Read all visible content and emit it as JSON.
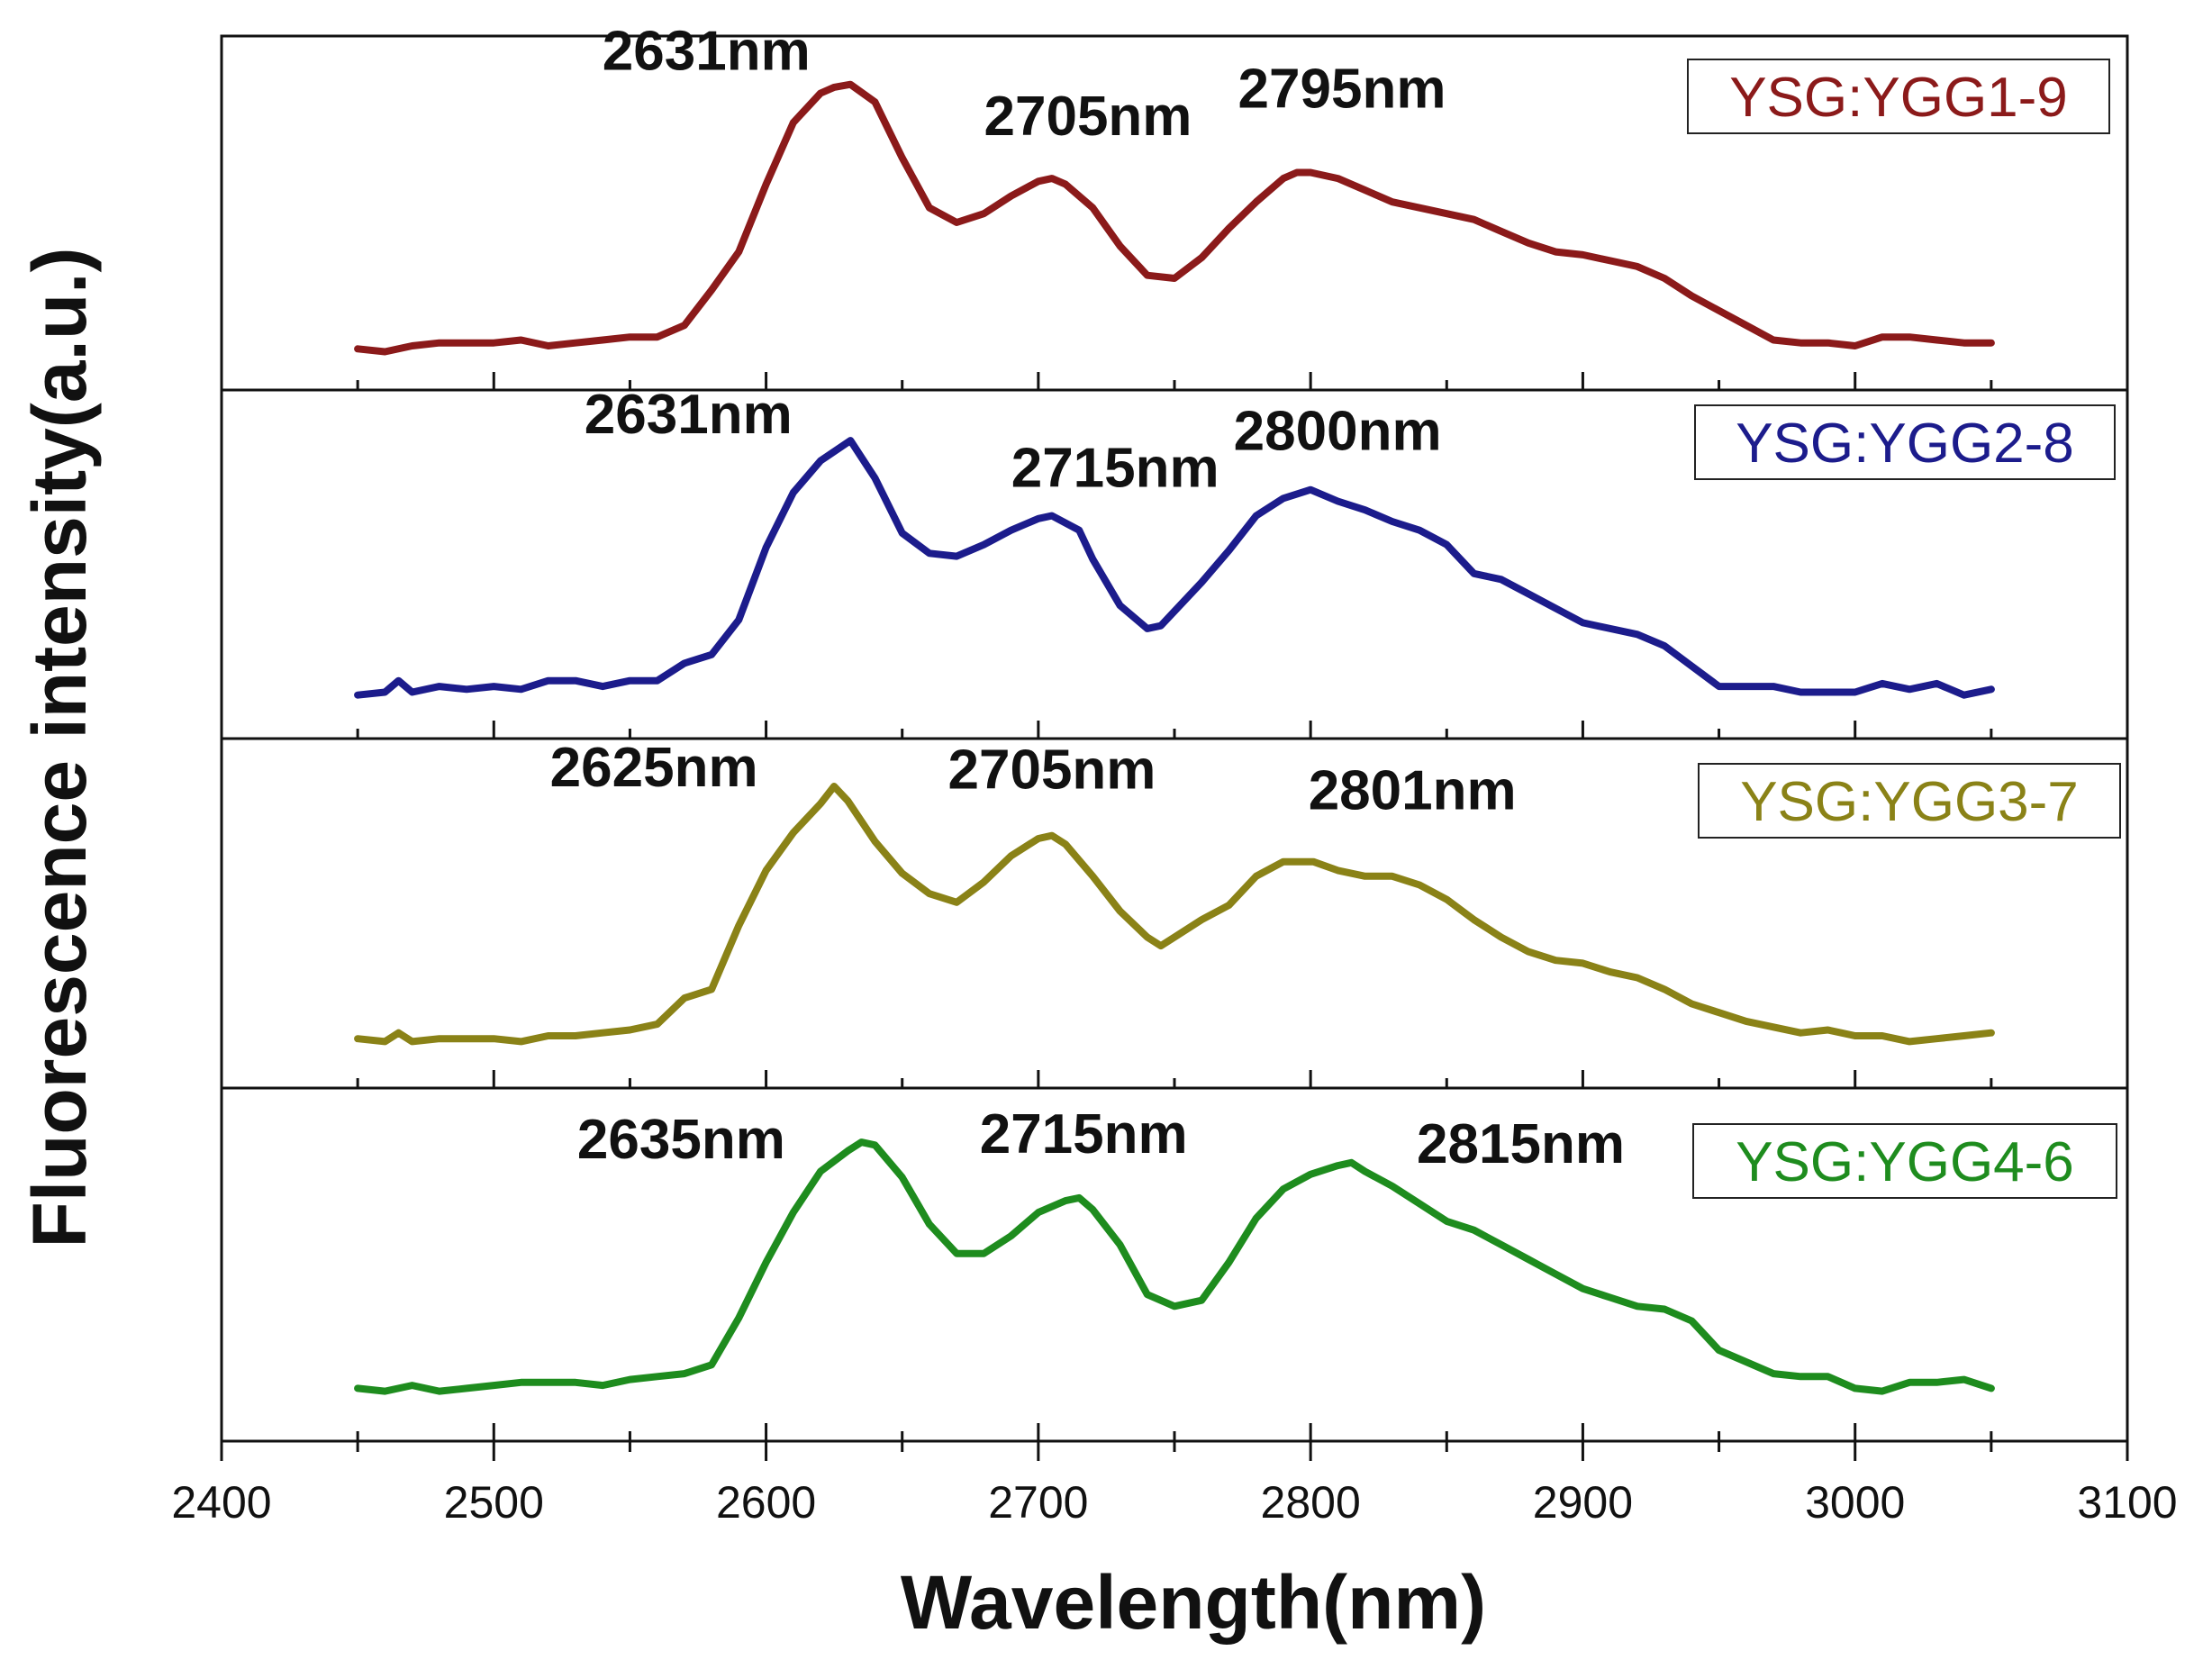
{
  "chart_data": {
    "type": "line",
    "title": "",
    "xlabel": "Wavelength(nm)",
    "ylabel": "Fluorescence intensity(a.u.)",
    "xlim": [
      2400,
      3100
    ],
    "xticks": [
      2400,
      2500,
      2600,
      2700,
      2800,
      2900,
      3000,
      3100
    ],
    "x_minor_ticks": [
      2450,
      2550,
      2650,
      2750,
      2850,
      2950,
      3050
    ],
    "ylim": [
      0,
      1
    ],
    "layout": "stacked-panels",
    "series": [
      {
        "name": "YSG:YGG1-9",
        "color": "#8b1a1a",
        "x": [
          2450,
          2460,
          2470,
          2480,
          2490,
          2500,
          2510,
          2520,
          2530,
          2540,
          2550,
          2560,
          2570,
          2580,
          2590,
          2600,
          2610,
          2620,
          2625,
          2631,
          2640,
          2650,
          2660,
          2670,
          2680,
          2690,
          2700,
          2705,
          2710,
          2720,
          2730,
          2740,
          2750,
          2760,
          2770,
          2780,
          2790,
          2795,
          2800,
          2810,
          2820,
          2830,
          2840,
          2850,
          2860,
          2870,
          2880,
          2890,
          2900,
          2910,
          2920,
          2930,
          2940,
          2950,
          2960,
          2970,
          2980,
          2990,
          3000,
          3010,
          3020,
          3030,
          3040,
          3050
        ],
        "y": [
          0.08,
          0.07,
          0.09,
          0.1,
          0.1,
          0.1,
          0.11,
          0.09,
          0.1,
          0.11,
          0.12,
          0.12,
          0.16,
          0.28,
          0.41,
          0.64,
          0.85,
          0.95,
          0.97,
          0.98,
          0.92,
          0.73,
          0.56,
          0.51,
          0.54,
          0.6,
          0.65,
          0.66,
          0.64,
          0.56,
          0.43,
          0.33,
          0.32,
          0.39,
          0.49,
          0.58,
          0.66,
          0.68,
          0.68,
          0.66,
          0.62,
          0.58,
          0.56,
          0.54,
          0.52,
          0.48,
          0.44,
          0.41,
          0.4,
          0.38,
          0.36,
          0.32,
          0.26,
          0.21,
          0.16,
          0.11,
          0.1,
          0.1,
          0.09,
          0.12,
          0.12,
          0.11,
          0.1,
          0.1
        ],
        "peaks": [
          {
            "label": "2631nm"
          },
          {
            "label": "2705nm"
          },
          {
            "label": "2795nm"
          }
        ]
      },
      {
        "name": "YSG:YGG2-8",
        "color": "#1c1c8c",
        "x": [
          2450,
          2460,
          2465,
          2470,
          2480,
          2490,
          2500,
          2510,
          2520,
          2530,
          2540,
          2550,
          2560,
          2570,
          2580,
          2590,
          2600,
          2610,
          2620,
          2631,
          2640,
          2650,
          2660,
          2670,
          2680,
          2690,
          2700,
          2705,
          2715,
          2720,
          2730,
          2740,
          2745,
          2750,
          2760,
          2770,
          2780,
          2790,
          2800,
          2810,
          2820,
          2830,
          2840,
          2850,
          2860,
          2870,
          2880,
          2890,
          2900,
          2910,
          2920,
          2930,
          2940,
          2950,
          2960,
          2970,
          2980,
          2990,
          3000,
          3010,
          3020,
          3030,
          3040,
          3050
        ],
        "y": [
          0.09,
          0.1,
          0.14,
          0.1,
          0.12,
          0.11,
          0.12,
          0.11,
          0.14,
          0.14,
          0.12,
          0.14,
          0.14,
          0.2,
          0.23,
          0.35,
          0.6,
          0.79,
          0.9,
          0.97,
          0.84,
          0.65,
          0.58,
          0.57,
          0.61,
          0.66,
          0.7,
          0.71,
          0.66,
          0.56,
          0.4,
          0.32,
          0.33,
          0.38,
          0.48,
          0.59,
          0.71,
          0.77,
          0.8,
          0.76,
          0.73,
          0.69,
          0.66,
          0.61,
          0.51,
          0.49,
          0.44,
          0.39,
          0.34,
          0.32,
          0.3,
          0.26,
          0.19,
          0.12,
          0.12,
          0.12,
          0.1,
          0.1,
          0.1,
          0.13,
          0.11,
          0.13,
          0.09,
          0.11
        ],
        "peaks": [
          {
            "label": "2631nm"
          },
          {
            "label": "2715nm"
          },
          {
            "label": "2800nm"
          }
        ]
      },
      {
        "name": "YSG:YGG3-7",
        "color": "#8a8217",
        "x": [
          2450,
          2460,
          2465,
          2470,
          2480,
          2490,
          2500,
          2510,
          2520,
          2530,
          2540,
          2550,
          2560,
          2570,
          2580,
          2590,
          2600,
          2610,
          2620,
          2625,
          2630,
          2640,
          2650,
          2660,
          2670,
          2680,
          2690,
          2700,
          2705,
          2710,
          2720,
          2730,
          2740,
          2745,
          2750,
          2760,
          2770,
          2780,
          2790,
          2801,
          2810,
          2820,
          2830,
          2840,
          2850,
          2860,
          2870,
          2880,
          2890,
          2900,
          2910,
          2920,
          2930,
          2940,
          2950,
          2960,
          2970,
          2980,
          2990,
          3000,
          3010,
          3020,
          3030,
          3040,
          3050
        ],
        "y": [
          0.11,
          0.1,
          0.13,
          0.1,
          0.11,
          0.11,
          0.11,
          0.1,
          0.12,
          0.12,
          0.13,
          0.14,
          0.16,
          0.25,
          0.28,
          0.5,
          0.69,
          0.82,
          0.92,
          0.98,
          0.93,
          0.79,
          0.68,
          0.61,
          0.58,
          0.65,
          0.74,
          0.8,
          0.81,
          0.78,
          0.67,
          0.55,
          0.46,
          0.43,
          0.46,
          0.52,
          0.57,
          0.67,
          0.72,
          0.72,
          0.69,
          0.67,
          0.67,
          0.64,
          0.59,
          0.52,
          0.46,
          0.41,
          0.38,
          0.37,
          0.34,
          0.32,
          0.28,
          0.23,
          0.2,
          0.17,
          0.15,
          0.13,
          0.14,
          0.12,
          0.12,
          0.1,
          0.11,
          0.12,
          0.13
        ],
        "peaks": [
          {
            "label": "2625nm"
          },
          {
            "label": "2705nm"
          },
          {
            "label": "2801nm"
          }
        ]
      },
      {
        "name": "YSG:YGG4-6",
        "color": "#1e8c1e",
        "x": [
          2450,
          2460,
          2470,
          2480,
          2490,
          2500,
          2510,
          2520,
          2530,
          2540,
          2550,
          2560,
          2570,
          2580,
          2590,
          2600,
          2610,
          2620,
          2630,
          2635,
          2640,
          2650,
          2660,
          2670,
          2680,
          2690,
          2700,
          2710,
          2715,
          2720,
          2730,
          2740,
          2750,
          2760,
          2770,
          2780,
          2790,
          2800,
          2810,
          2815,
          2820,
          2830,
          2840,
          2850,
          2860,
          2870,
          2880,
          2890,
          2900,
          2910,
          2920,
          2930,
          2940,
          2950,
          2960,
          2970,
          2980,
          2990,
          3000,
          3010,
          3020,
          3030,
          3040,
          3050
        ],
        "y": [
          0.12,
          0.11,
          0.13,
          0.11,
          0.12,
          0.13,
          0.14,
          0.14,
          0.14,
          0.13,
          0.15,
          0.16,
          0.17,
          0.2,
          0.36,
          0.55,
          0.72,
          0.86,
          0.93,
          0.96,
          0.95,
          0.84,
          0.68,
          0.58,
          0.58,
          0.64,
          0.72,
          0.76,
          0.77,
          0.73,
          0.61,
          0.44,
          0.4,
          0.42,
          0.55,
          0.7,
          0.8,
          0.85,
          0.88,
          0.89,
          0.86,
          0.81,
          0.75,
          0.69,
          0.66,
          0.61,
          0.56,
          0.51,
          0.46,
          0.43,
          0.4,
          0.39,
          0.35,
          0.25,
          0.21,
          0.17,
          0.16,
          0.16,
          0.12,
          0.11,
          0.14,
          0.14,
          0.15,
          0.12
        ],
        "peaks": [
          {
            "label": "2635nm"
          },
          {
            "label": "2715nm"
          },
          {
            "label": "2815nm"
          }
        ]
      }
    ]
  }
}
